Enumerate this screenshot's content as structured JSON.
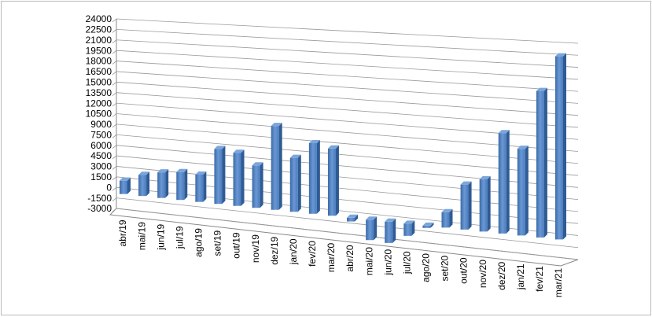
{
  "chart_data": {
    "type": "bar",
    "categories": [
      "abr/19",
      "mai/19",
      "jun/19",
      "jul/19",
      "ago/19",
      "set/19",
      "out/19",
      "nov/19",
      "dez/19",
      "jan/20",
      "fev/20",
      "mar/20",
      "abr/20",
      "mai/20",
      "jun/20",
      "jul/20",
      "ago/20",
      "set/20",
      "out/20",
      "nov/20",
      "dez/20",
      "jan/21",
      "fev/21",
      "mar/21"
    ],
    "values": [
      1900,
      3000,
      3600,
      3900,
      3800,
      7600,
      7300,
      5800,
      11400,
      7300,
      9500,
      9000,
      -500,
      -2700,
      -2800,
      -1600,
      -300,
      2000,
      5800,
      6700,
      12800,
      11000,
      18500,
      23000
    ],
    "color": "#4f81bd",
    "ylim": [
      -3000,
      24000
    ],
    "yticks": [
      -3000,
      -1500,
      0,
      1500,
      3000,
      4500,
      6000,
      7500,
      9000,
      10500,
      12000,
      13500,
      15000,
      16500,
      18000,
      19500,
      21000,
      22500,
      24000
    ],
    "grid": true
  }
}
